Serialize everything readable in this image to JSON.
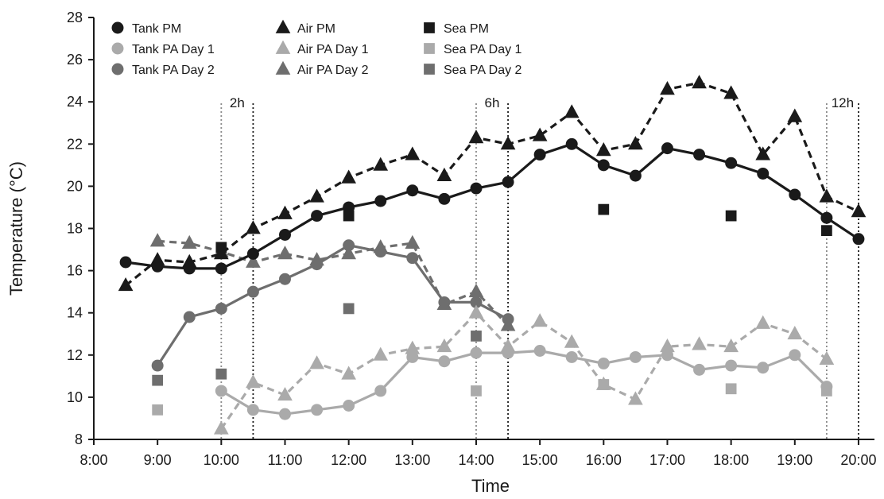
{
  "chart_data": {
    "type": "line",
    "xlabel": "Time",
    "ylabel": "Temperature (°C)",
    "ylim": [
      8,
      28
    ],
    "xlim": [
      8.0,
      20.25
    ],
    "x_ticks": [
      8,
      9,
      10,
      11,
      12,
      13,
      14,
      15,
      16,
      17,
      18,
      19,
      20
    ],
    "x_tick_labels": [
      "8:00",
      "9:00",
      "10:00",
      "11:00",
      "12:00",
      "13:00",
      "14:00",
      "15:00",
      "16:00",
      "17:00",
      "18:00",
      "19:00",
      "20:00"
    ],
    "y_ticks": [
      8,
      10,
      12,
      14,
      16,
      18,
      20,
      22,
      24,
      26,
      28
    ],
    "grid": false,
    "legend_position": "top-left",
    "time_markers": [
      {
        "label": "2h",
        "x_start": 10.0,
        "x_end": 10.5
      },
      {
        "label": "6h",
        "x_start": 14.0,
        "x_end": 14.5
      },
      {
        "label": "12h",
        "x_start": 19.5,
        "x_end": 20.0
      }
    ],
    "series": [
      {
        "name": "Tank PM",
        "marker": "circle",
        "line": "solid",
        "color": "#1a1a1a",
        "x": [
          8.5,
          9,
          9.5,
          10,
          10.5,
          11,
          11.5,
          12,
          12.5,
          13,
          13.5,
          14,
          14.5,
          15,
          15.5,
          16,
          16.5,
          17,
          17.5,
          18,
          18.5,
          19,
          19.5,
          20
        ],
        "y": [
          16.4,
          16.2,
          16.1,
          16.1,
          16.8,
          17.7,
          18.6,
          19.0,
          19.3,
          19.8,
          19.4,
          19.9,
          20.2,
          21.5,
          22.0,
          21.0,
          20.5,
          21.8,
          21.5,
          21.1,
          20.6,
          19.6,
          18.5,
          17.5
        ]
      },
      {
        "name": "Tank PA Day 1",
        "marker": "circle",
        "line": "solid",
        "color": "#aaaaaa",
        "x": [
          10,
          10.5,
          11,
          11.5,
          12,
          12.5,
          13,
          13.5,
          14,
          14.5,
          15,
          15.5,
          16,
          16.5,
          17,
          17.5,
          18,
          18.5,
          19,
          19.5
        ],
        "y": [
          10.3,
          9.4,
          9.2,
          9.4,
          9.6,
          10.3,
          11.9,
          11.7,
          12.1,
          12.1,
          12.2,
          11.9,
          11.6,
          11.9,
          12.0,
          11.3,
          11.5,
          11.4,
          12.0,
          10.5
        ]
      },
      {
        "name": "Tank PA Day 2",
        "marker": "circle",
        "line": "solid",
        "color": "#6e6e6e",
        "x": [
          9,
          9.5,
          10,
          10.5,
          11,
          11.5,
          12,
          12.5,
          13,
          13.5,
          14,
          14.5
        ],
        "y": [
          11.5,
          13.8,
          14.2,
          15.0,
          15.6,
          16.3,
          17.2,
          16.9,
          16.6,
          14.5,
          14.5,
          13.7
        ]
      },
      {
        "name": "Air PM",
        "marker": "triangle",
        "line": "dashed",
        "color": "#1a1a1a",
        "x": [
          8.5,
          9,
          9.5,
          10,
          10.5,
          11,
          11.5,
          12,
          12.5,
          13,
          13.5,
          14,
          14.5,
          15,
          15.5,
          16,
          16.5,
          17,
          17.5,
          18,
          18.5,
          19,
          19.5,
          20
        ],
        "y": [
          15.3,
          16.5,
          16.4,
          16.8,
          18.0,
          18.7,
          19.5,
          20.4,
          21.0,
          21.5,
          20.5,
          22.3,
          22.0,
          22.4,
          23.5,
          21.7,
          22.0,
          24.6,
          24.9,
          24.4,
          21.5,
          23.3,
          19.5,
          18.8
        ]
      },
      {
        "name": "Air PA Day 1",
        "marker": "triangle",
        "line": "dashed",
        "color": "#aaaaaa",
        "x": [
          10,
          10.5,
          11,
          11.5,
          12,
          12.5,
          13,
          13.5,
          14,
          14.5,
          15,
          15.5,
          16,
          16.5,
          17,
          17.5,
          18,
          18.5,
          19,
          19.5
        ],
        "y": [
          8.5,
          10.7,
          10.1,
          11.6,
          11.1,
          12.0,
          12.3,
          12.4,
          14.0,
          12.4,
          13.6,
          12.6,
          10.6,
          9.9,
          12.4,
          12.5,
          12.4,
          13.5,
          13.0,
          11.8
        ]
      },
      {
        "name": "Air PA Day 2",
        "marker": "triangle",
        "line": "dashed",
        "color": "#6e6e6e",
        "x": [
          9,
          9.5,
          10,
          10.5,
          11,
          11.5,
          12,
          12.5,
          13,
          13.5,
          14,
          14.5
        ],
        "y": [
          17.4,
          17.3,
          16.9,
          16.4,
          16.8,
          16.5,
          16.8,
          17.1,
          17.3,
          14.4,
          15.0,
          13.4
        ]
      },
      {
        "name": "Sea PM",
        "marker": "square",
        "line": "none",
        "color": "#1a1a1a",
        "x": [
          10,
          12,
          16,
          18,
          19.5
        ],
        "y": [
          17.1,
          18.6,
          18.9,
          18.6,
          17.9
        ]
      },
      {
        "name": "Sea PA Day 1",
        "marker": "square",
        "line": "none",
        "color": "#aaaaaa",
        "x": [
          9,
          14,
          16,
          18,
          19.5
        ],
        "y": [
          9.4,
          10.3,
          10.6,
          10.4,
          10.3
        ]
      },
      {
        "name": "Sea PA Day 2",
        "marker": "square",
        "line": "none",
        "color": "#6e6e6e",
        "x": [
          9,
          10,
          12,
          14
        ],
        "y": [
          10.8,
          11.1,
          14.2,
          12.9
        ]
      }
    ]
  }
}
